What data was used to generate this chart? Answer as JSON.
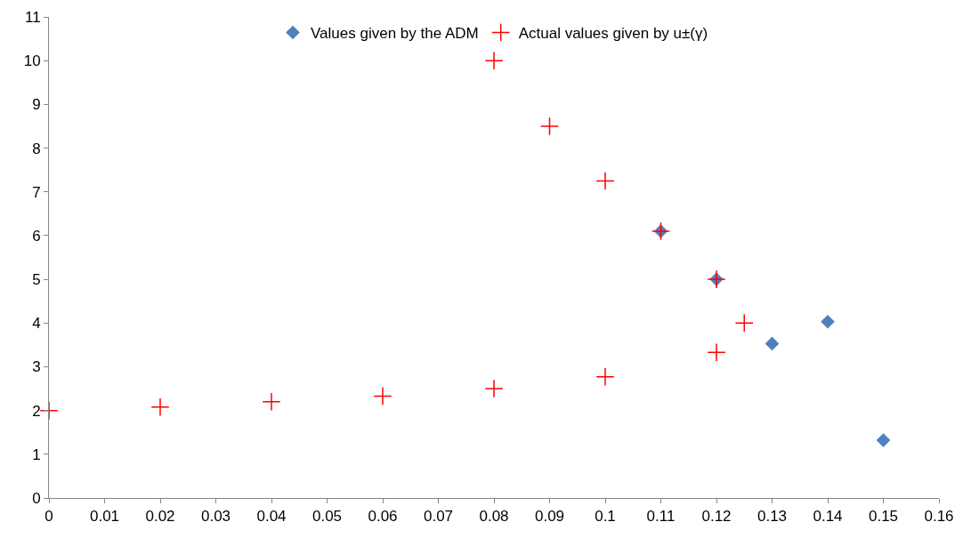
{
  "chart_data": {
    "type": "scatter",
    "series": [
      {
        "name": "Values given by the ADM",
        "color": "#4f81bd",
        "marker": "diamond",
        "x": [
          0.11,
          0.12,
          0.13,
          0.14,
          0.15
        ],
        "values": [
          6.1,
          5.0,
          3.53,
          4.03,
          1.32
        ]
      },
      {
        "name": "Actual values given by u±(γ)",
        "color": "#ff0000",
        "marker": "cross",
        "x": [
          0,
          0.02,
          0.04,
          0.06,
          0.08,
          0.1,
          0.12,
          0.125,
          0.12,
          0.11,
          0.1,
          0.09,
          0.08
        ],
        "values": [
          2.0,
          2.08,
          2.2,
          2.33,
          2.5,
          2.77,
          3.33,
          4.0,
          5.0,
          6.1,
          7.25,
          8.5,
          10.0
        ]
      }
    ],
    "xlim": [
      0,
      0.16
    ],
    "xticks": [
      0,
      0.01,
      0.02,
      0.03,
      0.04,
      0.05,
      0.06,
      0.07,
      0.08,
      0.09,
      0.1,
      0.11,
      0.12,
      0.13,
      0.14,
      0.15,
      0.16
    ],
    "ylim": [
      0,
      11
    ],
    "yticks": [
      0,
      1,
      2,
      3,
      4,
      5,
      6,
      7,
      8,
      9,
      10,
      11
    ],
    "legend": "top"
  }
}
